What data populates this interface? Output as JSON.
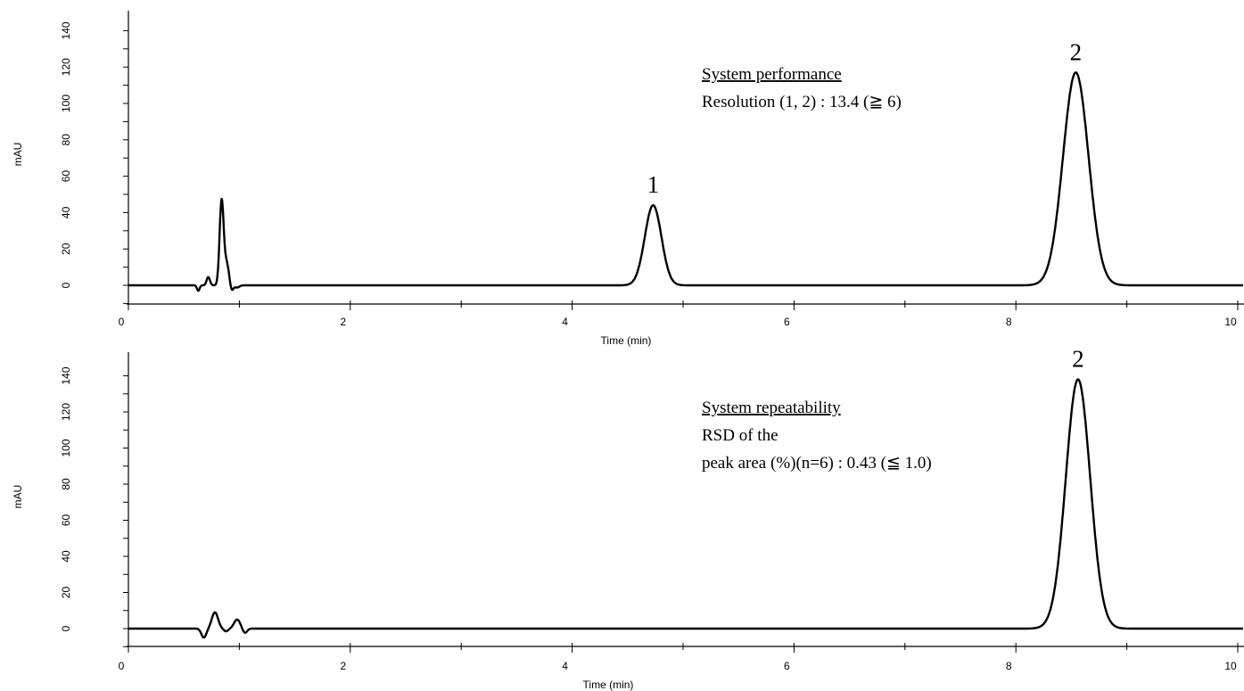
{
  "chart_data": [
    {
      "type": "line",
      "xlabel": "Time (min)",
      "ylabel": "mAU",
      "xlim": [
        0,
        10
      ],
      "ylim": [
        -10,
        140
      ],
      "x_ticks": [
        "0",
        "2",
        "4",
        "6",
        "8",
        "10"
      ],
      "y_ticks": [
        "0",
        "20",
        "40",
        "60",
        "80",
        "100",
        "120",
        "140"
      ],
      "grid": false,
      "series": [
        {
          "peaks": [
            {
              "t": 0.63,
              "h": -3,
              "w": 0.012
            },
            {
              "t": 0.72,
              "h": 4.5,
              "w": 0.015
            },
            {
              "t": 0.84,
              "h": 46,
              "w": 0.018
            },
            {
              "t": 0.885,
              "h": 12,
              "w": 0.022
            },
            {
              "t": 0.93,
              "h": -3.5,
              "w": 0.015
            },
            {
              "t": 0.98,
              "h": -1.2,
              "w": 0.02
            },
            {
              "t": 4.73,
              "h": 44,
              "w": 0.075
            },
            {
              "t": 8.54,
              "h": 117,
              "w": 0.115
            }
          ],
          "peak_annotations": [
            {
              "label": "1",
              "t": 4.73
            },
            {
              "label": "2",
              "t": 8.54
            }
          ]
        }
      ],
      "annotation": {
        "heading": "System performance",
        "line1": "Resolution (1, 2) : 13.4 (≧ 6)"
      }
    },
    {
      "type": "line",
      "xlabel": "Time (min)",
      "ylabel": "mAU",
      "xlim": [
        0,
        10
      ],
      "ylim": [
        -10,
        140
      ],
      "x_ticks": [
        "0",
        "2",
        "4",
        "6",
        "8",
        "10"
      ],
      "y_ticks": [
        "0",
        "20",
        "40",
        "60",
        "80",
        "100",
        "120",
        "140"
      ],
      "grid": false,
      "series": [
        {
          "peaks": [
            {
              "t": 0.68,
              "h": -5,
              "w": 0.022
            },
            {
              "t": 0.78,
              "h": 9,
              "w": 0.028
            },
            {
              "t": 0.88,
              "h": -1.5,
              "w": 0.02
            },
            {
              "t": 0.98,
              "h": 5,
              "w": 0.028
            },
            {
              "t": 1.05,
              "h": -2.5,
              "w": 0.02
            },
            {
              "t": 8.56,
              "h": 138,
              "w": 0.11
            }
          ],
          "peak_annotations": [
            {
              "label": "2",
              "t": 8.56
            }
          ]
        }
      ],
      "annotation": {
        "heading": "System repeatability",
        "line1": "RSD of the",
        "line2": "peak area (%)(n=6) : 0.43 (≦ 1.0)"
      }
    }
  ]
}
